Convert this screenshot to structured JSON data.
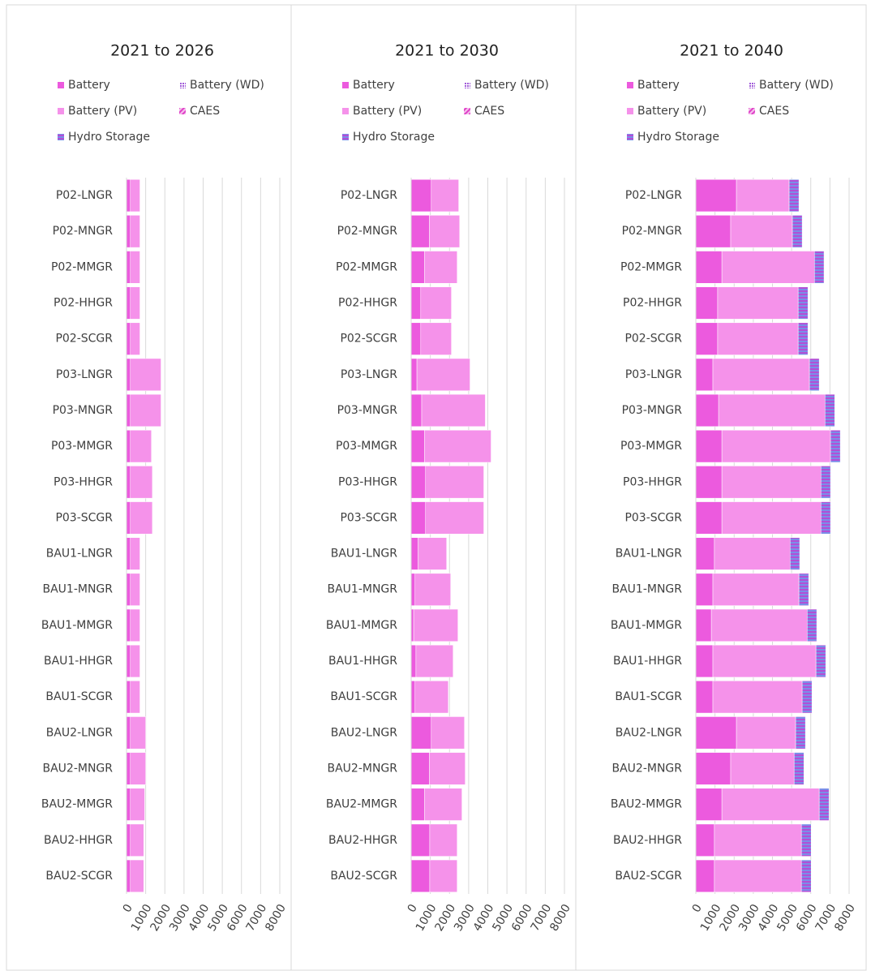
{
  "chart_data": [
    {
      "type": "bar",
      "orientation": "horizontal",
      "stacked": true,
      "title": "2021 to 2026",
      "categories": [
        "P02-LNGR",
        "P02-MNGR",
        "P02-MMGR",
        "P02-HHGR",
        "P02-SCGR",
        "P03-LNGR",
        "P03-MNGR",
        "P03-MMGR",
        "P03-HHGR",
        "P03-SCGR",
        "BAU1-LNGR",
        "BAU1-MNGR",
        "BAU1-MMGR",
        "BAU1-HHGR",
        "BAU1-SCGR",
        "BAU2-LNGR",
        "BAU2-MNGR",
        "BAU2-MMGR",
        "BAU2-HHGR",
        "BAU2-SCGR"
      ],
      "series": [
        {
          "name": "Battery",
          "color": "#ec5ade",
          "pattern": "solid",
          "values": [
            200,
            200,
            200,
            200,
            200,
            200,
            200,
            200,
            200,
            200,
            200,
            200,
            200,
            200,
            200,
            200,
            200,
            200,
            200,
            200
          ]
        },
        {
          "name": "Battery (WD)",
          "color": "#a05ad8",
          "pattern": "dots",
          "values": [
            0,
            0,
            0,
            0,
            0,
            0,
            0,
            0,
            0,
            0,
            0,
            0,
            0,
            0,
            0,
            0,
            0,
            0,
            0,
            0
          ]
        },
        {
          "name": "Battery (PV)",
          "color": "#f592ea",
          "pattern": "solid",
          "values": [
            500,
            500,
            500,
            500,
            500,
            1600,
            1600,
            1100,
            1150,
            1150,
            500,
            500,
            500,
            500,
            500,
            800,
            800,
            750,
            700,
            700
          ]
        },
        {
          "name": "CAES",
          "color": "#e040c8",
          "pattern": "hatch",
          "values": [
            0,
            0,
            0,
            0,
            0,
            0,
            0,
            0,
            0,
            0,
            0,
            0,
            0,
            0,
            0,
            0,
            0,
            0,
            0,
            0
          ]
        },
        {
          "name": "Hydro Storage",
          "color": "#7a8ee8",
          "pattern": "stripes",
          "values": [
            0,
            0,
            0,
            0,
            0,
            0,
            0,
            0,
            0,
            0,
            0,
            0,
            0,
            0,
            0,
            0,
            0,
            0,
            0,
            0
          ]
        }
      ],
      "xlim": [
        0,
        8000
      ],
      "xticks": [
        0,
        1000,
        2000,
        3000,
        4000,
        5000,
        6000,
        7000,
        8000
      ],
      "grid": true
    },
    {
      "type": "bar",
      "orientation": "horizontal",
      "stacked": true,
      "title": "2021 to 2030",
      "categories": [
        "P02-LNGR",
        "P02-MNGR",
        "P02-MMGR",
        "P02-HHGR",
        "P02-SCGR",
        "P03-LNGR",
        "P03-MNGR",
        "P03-MMGR",
        "P03-HHGR",
        "P03-SCGR",
        "BAU1-LNGR",
        "BAU1-MNGR",
        "BAU1-MMGR",
        "BAU1-HHGR",
        "BAU1-SCGR",
        "BAU2-LNGR",
        "BAU2-MNGR",
        "BAU2-MMGR",
        "BAU2-HHGR",
        "BAU2-SCGR"
      ],
      "series": [
        {
          "name": "Battery",
          "color": "#ec5ade",
          "pattern": "solid",
          "values": [
            1050,
            950,
            700,
            500,
            500,
            300,
            550,
            700,
            750,
            750,
            350,
            200,
            130,
            250,
            200,
            1050,
            950,
            700,
            970,
            970
          ]
        },
        {
          "name": "Battery (WD)",
          "color": "#a05ad8",
          "pattern": "dots",
          "values": [
            0,
            0,
            0,
            0,
            0,
            0,
            0,
            0,
            0,
            0,
            0,
            0,
            0,
            0,
            0,
            0,
            0,
            0,
            0,
            0
          ]
        },
        {
          "name": "Battery (PV)",
          "color": "#f592ea",
          "pattern": "solid",
          "values": [
            1430,
            1580,
            1700,
            1600,
            1600,
            2770,
            3320,
            3470,
            3040,
            3040,
            1500,
            1860,
            2310,
            1940,
            1740,
            1730,
            1870,
            1950,
            1430,
            1430
          ]
        },
        {
          "name": "CAES",
          "color": "#e040c8",
          "pattern": "hatch",
          "values": [
            0,
            0,
            0,
            0,
            0,
            0,
            0,
            0,
            0,
            0,
            0,
            0,
            0,
            0,
            0,
            0,
            0,
            0,
            0,
            0
          ]
        },
        {
          "name": "Hydro Storage",
          "color": "#7a8ee8",
          "pattern": "stripes",
          "values": [
            0,
            0,
            0,
            0,
            0,
            0,
            0,
            0,
            0,
            0,
            0,
            0,
            0,
            0,
            0,
            0,
            0,
            0,
            0,
            0
          ]
        }
      ],
      "xlim": [
        0,
        8000
      ],
      "xticks": [
        0,
        1000,
        2000,
        3000,
        4000,
        5000,
        6000,
        7000,
        8000
      ],
      "grid": true
    },
    {
      "type": "bar",
      "orientation": "horizontal",
      "stacked": true,
      "title": "2021 to 2040",
      "categories": [
        "P02-LNGR",
        "P02-MNGR",
        "P02-MMGR",
        "P02-HHGR",
        "P02-SCGR",
        "P03-LNGR",
        "P03-MNGR",
        "P03-MMGR",
        "P03-HHGR",
        "P03-SCGR",
        "BAU1-LNGR",
        "BAU1-MNGR",
        "BAU1-MMGR",
        "BAU1-HHGR",
        "BAU1-SCGR",
        "BAU2-LNGR",
        "BAU2-MNGR",
        "BAU2-MMGR",
        "BAU2-HHGR",
        "BAU2-SCGR"
      ],
      "series": [
        {
          "name": "Battery",
          "color": "#ec5ade",
          "pattern": "solid",
          "values": [
            2120,
            1820,
            1360,
            1140,
            1140,
            890,
            1190,
            1360,
            1360,
            1360,
            970,
            890,
            810,
            890,
            890,
            2120,
            1820,
            1360,
            970,
            970
          ]
        },
        {
          "name": "Battery (WD)",
          "color": "#a05ad8",
          "pattern": "dots",
          "values": [
            0,
            0,
            0,
            0,
            0,
            0,
            0,
            0,
            0,
            0,
            0,
            0,
            0,
            0,
            0,
            0,
            0,
            0,
            0,
            0
          ]
        },
        {
          "name": "Battery (PV)",
          "color": "#f592ea",
          "pattern": "solid",
          "values": [
            2750,
            3220,
            4830,
            4200,
            4200,
            5040,
            5550,
            5670,
            5170,
            5170,
            3950,
            4490,
            5000,
            5380,
            4660,
            3090,
            3310,
            5080,
            4540,
            4540
          ]
        },
        {
          "name": "CAES",
          "color": "#e040c8",
          "pattern": "hatch",
          "values": [
            0,
            0,
            0,
            0,
            0,
            0,
            0,
            0,
            0,
            0,
            0,
            0,
            0,
            0,
            0,
            0,
            0,
            0,
            0,
            0
          ]
        },
        {
          "name": "Hydro Storage",
          "color": "#7a8ee8",
          "pattern": "stripes",
          "values": [
            510,
            510,
            500,
            510,
            510,
            510,
            510,
            510,
            500,
            500,
            500,
            510,
            500,
            510,
            510,
            510,
            510,
            510,
            510,
            510
          ]
        }
      ],
      "xlim": [
        0,
        8000
      ],
      "xticks": [
        0,
        1000,
        2000,
        3000,
        4000,
        5000,
        6000,
        7000,
        8000
      ],
      "grid": true
    }
  ]
}
